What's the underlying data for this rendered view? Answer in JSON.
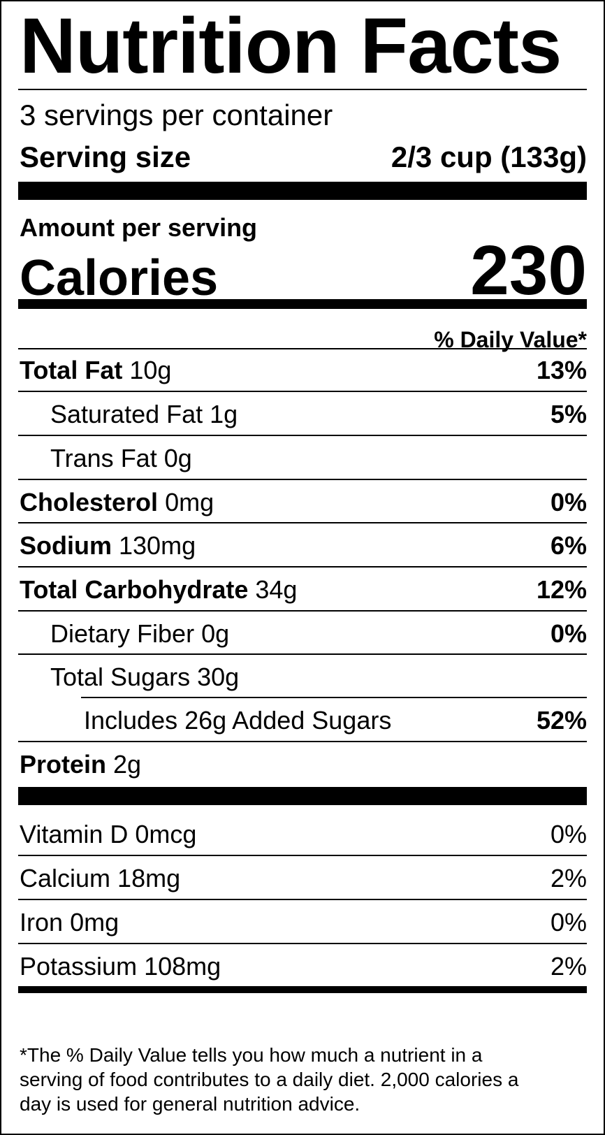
{
  "title": "Nutrition Facts",
  "servings_per_container": "3 servings per container",
  "serving_size": {
    "label": "Serving size",
    "value": "2/3 cup (133g)"
  },
  "amount_per_serving": "Amount per serving",
  "calories": {
    "label": "Calories",
    "value": "230"
  },
  "daily_value_header": "% Daily Value*",
  "nutrients": [
    {
      "name": "Total Fat",
      "amount": "10g",
      "dv": "13%"
    },
    {
      "name": "Saturated Fat",
      "amount": "1g",
      "dv": "5%"
    },
    {
      "name": "Trans Fat",
      "amount": "0g",
      "dv": ""
    },
    {
      "name": "Cholesterol",
      "amount": "0mg",
      "dv": "0%"
    },
    {
      "name": "Sodium",
      "amount": "130mg",
      "dv": "6%"
    },
    {
      "name": "Total Carbohydrate",
      "amount": "34g",
      "dv": "12%"
    },
    {
      "name": "Dietary Fiber",
      "amount": "0g",
      "dv": "0%"
    },
    {
      "name": "Total Sugars",
      "amount": "30g",
      "dv": ""
    },
    {
      "name": "Includes 26g Added Sugars",
      "amount": "",
      "dv": "52%"
    },
    {
      "name": "Protein",
      "amount": "2g",
      "dv": ""
    }
  ],
  "vitamins": [
    {
      "name": "Vitamin D",
      "amount": "0mcg",
      "dv": "0%"
    },
    {
      "name": "Calcium",
      "amount": "18mg",
      "dv": "2%"
    },
    {
      "name": "Iron",
      "amount": "0mg",
      "dv": "0%"
    },
    {
      "name": "Potassium",
      "amount": "108mg",
      "dv": "2%"
    }
  ],
  "footnote": [
    "*The % Daily Value tells you how much a nutrient in a",
    "serving of food contributes to a daily diet. 2,000 calories a",
    "day is used for general nutrition advice."
  ]
}
